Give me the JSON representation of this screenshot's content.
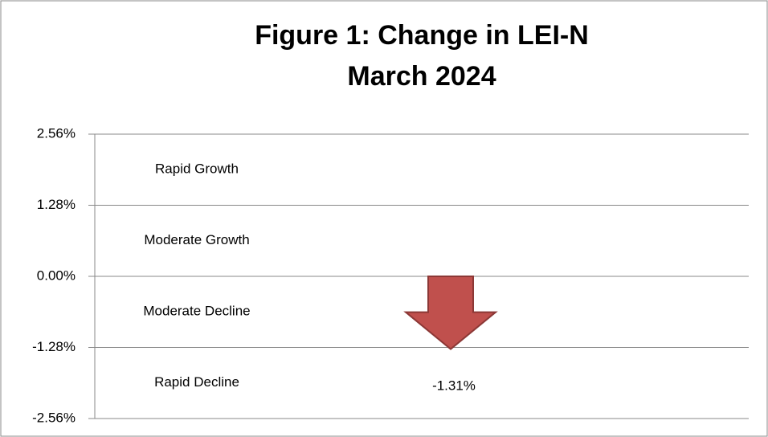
{
  "chart_data": {
    "type": "arrow",
    "title": "Figure 1:  Change in LEI-N",
    "subtitle": "March 2024",
    "zones": [
      "Rapid Growth",
      "Moderate Growth",
      "Moderate Decline",
      "Rapid Decline"
    ],
    "values": [
      -1.31
    ],
    "value_labels": [
      "-1.31%"
    ],
    "color": "#c0504d",
    "ylim": [
      -2.56,
      2.56
    ],
    "yticks": [
      {
        "value": 2.56,
        "label": "2.56%"
      },
      {
        "value": 1.28,
        "label": "1.28%"
      },
      {
        "value": 0,
        "label": "0.00%"
      },
      {
        "value": -1.28,
        "label": "-1.28%"
      },
      {
        "value": -2.56,
        "label": "-2.56%"
      }
    ],
    "grid": true
  }
}
